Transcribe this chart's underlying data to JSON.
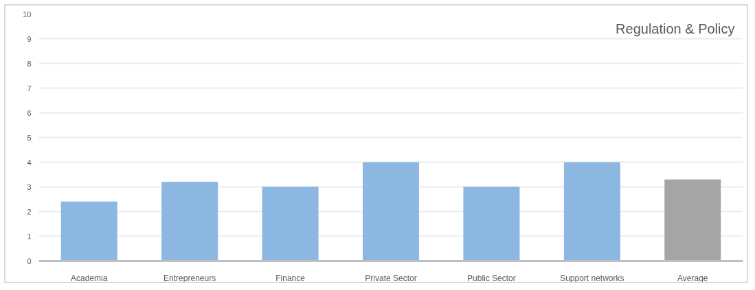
{
  "chart_data": {
    "type": "bar",
    "title": "Regulation & Policy",
    "categories": [
      "Academia",
      "Entrepreneurs",
      "Finance",
      "Private Sector",
      "Public Sector",
      "Support networks",
      "Average"
    ],
    "values": [
      2.4,
      3.2,
      3.0,
      4.0,
      3.0,
      4.0,
      3.3
    ],
    "colors": [
      "#8cb7e0",
      "#8cb7e0",
      "#8cb7e0",
      "#8cb7e0",
      "#8cb7e0",
      "#8cb7e0",
      "#a5a5a5"
    ],
    "ylim": [
      0,
      10
    ],
    "yticks": [
      0,
      1,
      2,
      3,
      4,
      5,
      6,
      7,
      8,
      9,
      10
    ],
    "grid": "y"
  }
}
